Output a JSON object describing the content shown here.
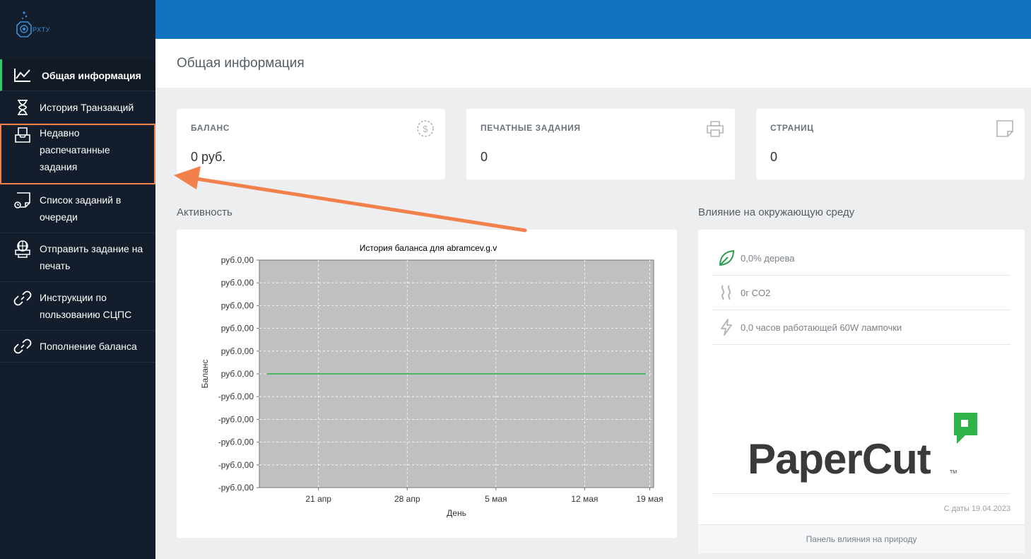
{
  "app": {
    "logo_text": "РХТУ"
  },
  "sidebar": {
    "items": [
      {
        "label": "Общая информация",
        "icon": "chart-line-icon"
      },
      {
        "label": "История Транзакций",
        "icon": "hourglass-icon"
      },
      {
        "label": "Недавно распечатанные задания",
        "icon": "inbox-tray-icon"
      },
      {
        "label": "Список заданий в очереди",
        "icon": "print-queue-icon"
      },
      {
        "label": "Отправить задание на печать",
        "icon": "web-print-icon"
      },
      {
        "label": "Инструкции по пользованию СЦПС",
        "icon": "link-icon"
      },
      {
        "label": "Пополнение баланса",
        "icon": "link-icon"
      }
    ]
  },
  "header": {
    "title": "Общая информация"
  },
  "stats": [
    {
      "label": "БАЛАНС",
      "value": "0 руб.",
      "icon": "dollar-circle-icon"
    },
    {
      "label": "ПЕЧАТНЫЕ ЗАДАНИЯ",
      "value": "0",
      "icon": "printer-icon"
    },
    {
      "label": "СТРАНИЦ",
      "value": "0",
      "icon": "page-icon"
    }
  ],
  "activity": {
    "title": "Активность"
  },
  "environment": {
    "title": "Влияние на окружающую среду",
    "rows": [
      {
        "text": "0,0% дерева",
        "icon": "leaf-icon"
      },
      {
        "text": "0г CO2",
        "icon": "smoke-icon"
      },
      {
        "text": "0,0 часов работающей 60W лампочки",
        "icon": "lightning-icon"
      }
    ],
    "brand": "PaperCut",
    "since": "С даты 19.04.2023",
    "footer_link": "Панель влияния на природу",
    "colors": {
      "leaf": "#2e9e4f",
      "brand_green": "#2eb34a",
      "brand_text": "#3a3a3a"
    }
  },
  "colors": {
    "topbar": "#1273bf",
    "sidebar": "#141d2b",
    "active_border": "#2ecc71",
    "annotation": "#f2804a"
  },
  "chart_data": {
    "type": "line",
    "title": "История баланса для abramcev.g.v",
    "xlabel": "День",
    "ylabel": "Баланс",
    "x_ticks": [
      "21 апр",
      "28 апр",
      "5 мая",
      "12 мая",
      "19 мая"
    ],
    "y_ticks": [
      "руб.0,00",
      "руб.0,00",
      "руб.0,00",
      "руб.0,00",
      "руб.0,00",
      "руб.0,00",
      "-руб.0,00",
      "-руб.0,00",
      "-руб.0,00",
      "-руб.0,00",
      "-руб.0,00"
    ],
    "series": [
      {
        "x": [
          "19.04.2023",
          "19.05.2023"
        ],
        "values": [
          0,
          0
        ],
        "color": "#2eb34a"
      }
    ],
    "plot_background": "#c0c0c0",
    "grid": true
  }
}
